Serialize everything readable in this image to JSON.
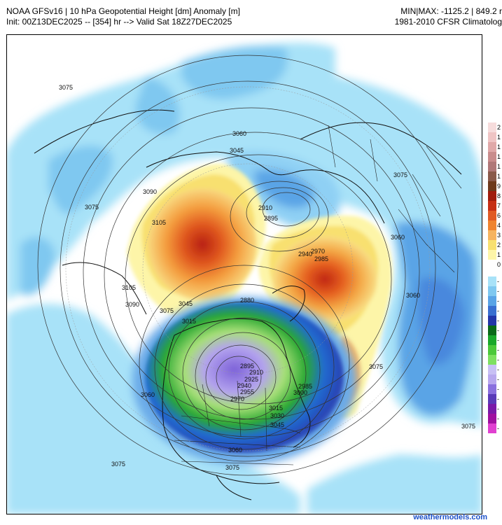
{
  "header": {
    "title": "NOAA GFSv16 | 10 hPa Geopotential Height [dm] Anomaly [m]",
    "init": "Init: 00Z13DEC2025 -- [354] hr --> Valid Sat 18Z27DEC2025",
    "minmax": "MIN|MAX: -1125.2 | 849.2 r",
    "climatology": "1981-2010 CFSR Climatolog"
  },
  "credit": "weathermodels.com",
  "colors": {
    "very_light_blue": "#a8e2f8",
    "light_blue": "#7fc8f0",
    "mid_blue": "#5aa4e6",
    "deep_blue": "#3a6fd0",
    "navy": "#2336a8",
    "green_dark": "#1aa82a",
    "green_light": "#7ee060",
    "lavender": "#b8a8ee",
    "purple": "#8a70de",
    "pale_yellow": "#fdf5a8",
    "yellow": "#f8e070",
    "orange_light": "#f6b460",
    "orange": "#ef8430",
    "red_orange": "#e05a24",
    "red": "#c62e14"
  },
  "colorbar": {
    "positive_labels": [
      "2",
      "1",
      "1",
      "1",
      "1",
      "1",
      "9",
      "8",
      "7",
      "6",
      "4",
      "3",
      "2",
      "1",
      "0"
    ],
    "negative_labels": [
      "-",
      "-",
      "-",
      "-",
      "-",
      "-",
      "-",
      "-",
      "-",
      "-",
      "-",
      "-",
      "-",
      "-",
      "-",
      "-"
    ]
  },
  "contour_labels": [
    {
      "text": "3075",
      "placement": "top-center"
    },
    {
      "text": "3060",
      "placement": "upper-center"
    },
    {
      "text": "3045",
      "placement": "upper-center"
    },
    {
      "text": "3090",
      "placement": "left-ridge"
    },
    {
      "text": "3075",
      "placement": "left"
    },
    {
      "text": "3105",
      "placement": "left-ridge"
    },
    {
      "text": "3105",
      "placement": "lower-left-ridge"
    },
    {
      "text": "3090",
      "placement": "lower-left"
    },
    {
      "text": "2910",
      "placement": "pole"
    },
    {
      "text": "2895",
      "placement": "pole"
    },
    {
      "text": "2940",
      "placement": "right-ridge"
    },
    {
      "text": "2970",
      "placement": "right-ridge"
    },
    {
      "text": "2985",
      "placement": "right-ridge"
    },
    {
      "text": "3075",
      "placement": "right-upper"
    },
    {
      "text": "3060",
      "placement": "right"
    },
    {
      "text": "3060",
      "placement": "right-lower"
    },
    {
      "text": "3075",
      "placement": "right-bottom"
    },
    {
      "text": "3075",
      "placement": "atlantic"
    },
    {
      "text": "3045",
      "placement": "canada-north"
    },
    {
      "text": "3075",
      "placement": "canada-north"
    },
    {
      "text": "3015",
      "placement": "canada-west"
    },
    {
      "text": "2880",
      "placement": "canada-north"
    },
    {
      "text": "2895",
      "placement": "vortex"
    },
    {
      "text": "2910",
      "placement": "vortex"
    },
    {
      "text": "2925",
      "placement": "vortex"
    },
    {
      "text": "2940",
      "placement": "vortex"
    },
    {
      "text": "2955",
      "placement": "vortex"
    },
    {
      "text": "2970",
      "placement": "vortex"
    },
    {
      "text": "2985",
      "placement": "vortex"
    },
    {
      "text": "3000",
      "placement": "vortex"
    },
    {
      "text": "3015",
      "placement": "vortex-south"
    },
    {
      "text": "3030",
      "placement": "vortex-south"
    },
    {
      "text": "3045",
      "placement": "vortex-south"
    },
    {
      "text": "3060",
      "placement": "pacific"
    },
    {
      "text": "3060",
      "placement": "us-south"
    },
    {
      "text": "3075",
      "placement": "bottom-left"
    },
    {
      "text": "3075",
      "placement": "bottom-center"
    }
  ]
}
